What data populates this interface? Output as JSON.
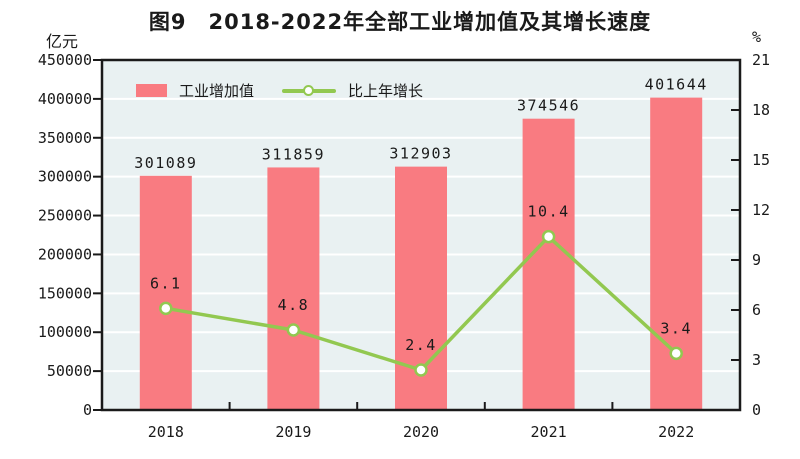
{
  "chart_data": {
    "type": "bar",
    "title": "图9　2018-2022年全部工业增加值及其增长速度",
    "categories": [
      "2018",
      "2019",
      "2020",
      "2021",
      "2022"
    ],
    "series": [
      {
        "name": "工业增加值",
        "kind": "bar",
        "axis": "left",
        "values": [
          301089,
          311859,
          312903,
          374546,
          401644
        ],
        "color": "#F97B81"
      },
      {
        "name": "比上年增长",
        "kind": "line",
        "axis": "right",
        "values": [
          6.1,
          4.8,
          2.4,
          10.4,
          3.4
        ],
        "color": "#92C850"
      }
    ],
    "left_axis": {
      "unit": "亿元",
      "min": 0,
      "max": 450000,
      "step": 50000,
      "ticks": [
        0,
        50000,
        100000,
        150000,
        200000,
        250000,
        300000,
        350000,
        400000,
        450000
      ]
    },
    "right_axis": {
      "unit": "%",
      "min": 0,
      "max": 21,
      "step": 3,
      "ticks": [
        0,
        3,
        6,
        9,
        12,
        15,
        18,
        21
      ]
    },
    "layout": {
      "plot_bg": "#E9F1F2",
      "grid_color": "#FFFFFF",
      "frame_color": "#1a1a1a",
      "legend_position": "top-left-inside",
      "grid": "horizontal"
    }
  }
}
